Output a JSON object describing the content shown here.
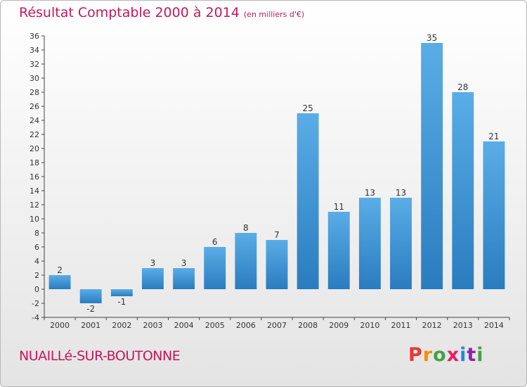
{
  "title": "Résultat Comptable 2000 à 2014",
  "unit_note": "(en milliers d'€)",
  "location_label": "NUAILLé-SUR-BOUTONNE",
  "logo": {
    "text": "Proxiti",
    "letter_colors": [
      "#e53935",
      "#fb8c00",
      "#43a047",
      "#e91e63",
      "#1e88e5",
      "#8e24aa",
      "#43a047"
    ]
  },
  "colors": {
    "title": "#c2185b",
    "bar_top": "#5aade6",
    "bar_bottom": "#2a7cbf"
  },
  "chart_data": {
    "type": "bar",
    "title": "Résultat Comptable 2000 à 2014",
    "xlabel": "",
    "ylabel": "(en milliers d'€)",
    "categories": [
      "2000",
      "2001",
      "2002",
      "2003",
      "2004",
      "2005",
      "2006",
      "2007",
      "2008",
      "2009",
      "2010",
      "2011",
      "2012",
      "2013",
      "2014"
    ],
    "values": [
      2,
      -2,
      -1,
      3,
      3,
      6,
      8,
      7,
      25,
      11,
      13,
      13,
      35,
      28,
      21
    ],
    "ylim": [
      -4,
      36
    ],
    "ytick_step": 2,
    "grid": false
  }
}
